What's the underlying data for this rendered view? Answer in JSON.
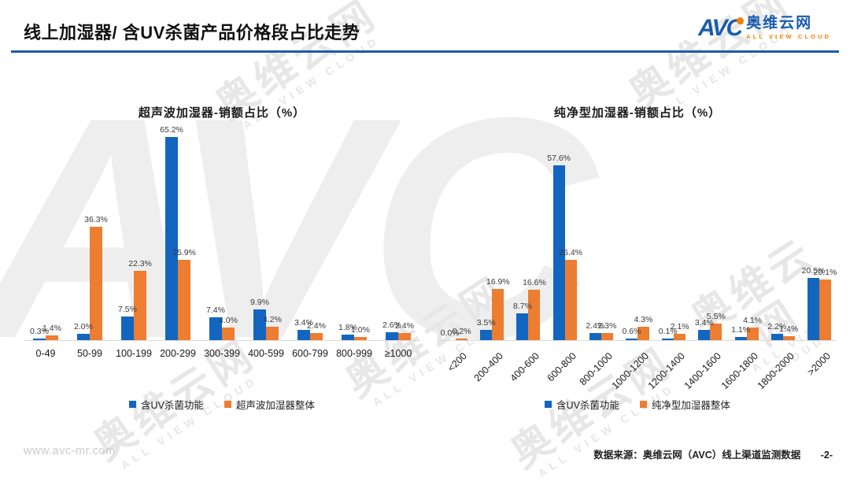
{
  "page": {
    "title": "线上加湿器/ 含UV杀菌产品价格段占比走势",
    "footer_url": "www.avc-mr.com",
    "footer_source": "数据来源：奥维云网（AVC）线上渠道监测数据",
    "page_number": "-2-"
  },
  "logo": {
    "mark": "AVC",
    "cn": "奥维云网",
    "en": "ALL VIEW CLOUD"
  },
  "watermark": {
    "big": "AVC",
    "text": "奥维云网",
    "sub": "ALL VIEW CLOUD"
  },
  "colors": {
    "blue": "#1266c0",
    "orange": "#ed7d31",
    "header_rule": "#1d5ba9",
    "axis_line": "#d9d9d9"
  },
  "chart_data": [
    {
      "type": "bar",
      "title": "超声波加湿器-销额占比（%）",
      "categories": [
        "0-49",
        "50-99",
        "100-199",
        "200-299",
        "300-399",
        "400-599",
        "600-799",
        "800-999",
        "≥1000"
      ],
      "series": [
        {
          "name": "含UV杀菌功能",
          "color": "#1266c0",
          "values": [
            0.3,
            2.0,
            7.5,
            65.2,
            7.4,
            9.9,
            3.4,
            1.8,
            2.6
          ]
        },
        {
          "name": "超声波加湿器整体",
          "color": "#ed7d31",
          "values": [
            1.4,
            36.3,
            22.3,
            25.9,
            4.0,
            4.2,
            2.4,
            1.0,
            2.4
          ]
        }
      ],
      "ylim": [
        0,
        65.2
      ],
      "x_tick_rotation": 0,
      "grid": false,
      "legend_position": "bottom",
      "label_format": "one-decimal-percent"
    },
    {
      "type": "bar",
      "title": "纯净型加湿器-销额占比（%）",
      "categories": [
        "<200",
        "200-400",
        "400-600",
        "600-800",
        "800-1000",
        "1000-1200",
        "1200-1400",
        "1400-1600",
        "1600-1800",
        "1800-2000",
        ">2000"
      ],
      "series": [
        {
          "name": "含UV杀菌功能",
          "color": "#1266c0",
          "values": [
            0.0,
            3.5,
            8.7,
            57.6,
            2.4,
            0.6,
            0.1,
            3.4,
            1.1,
            2.2,
            20.5
          ]
        },
        {
          "name": "纯净型加湿器整体",
          "color": "#ed7d31",
          "values": [
            0.2,
            16.9,
            16.6,
            26.4,
            2.3,
            4.3,
            2.1,
            5.5,
            4.1,
            1.4,
            20.1
          ]
        }
      ],
      "ylim": [
        0,
        57.6
      ],
      "x_tick_rotation": -45,
      "grid": false,
      "legend_position": "bottom",
      "label_format": "one-decimal-percent"
    }
  ]
}
